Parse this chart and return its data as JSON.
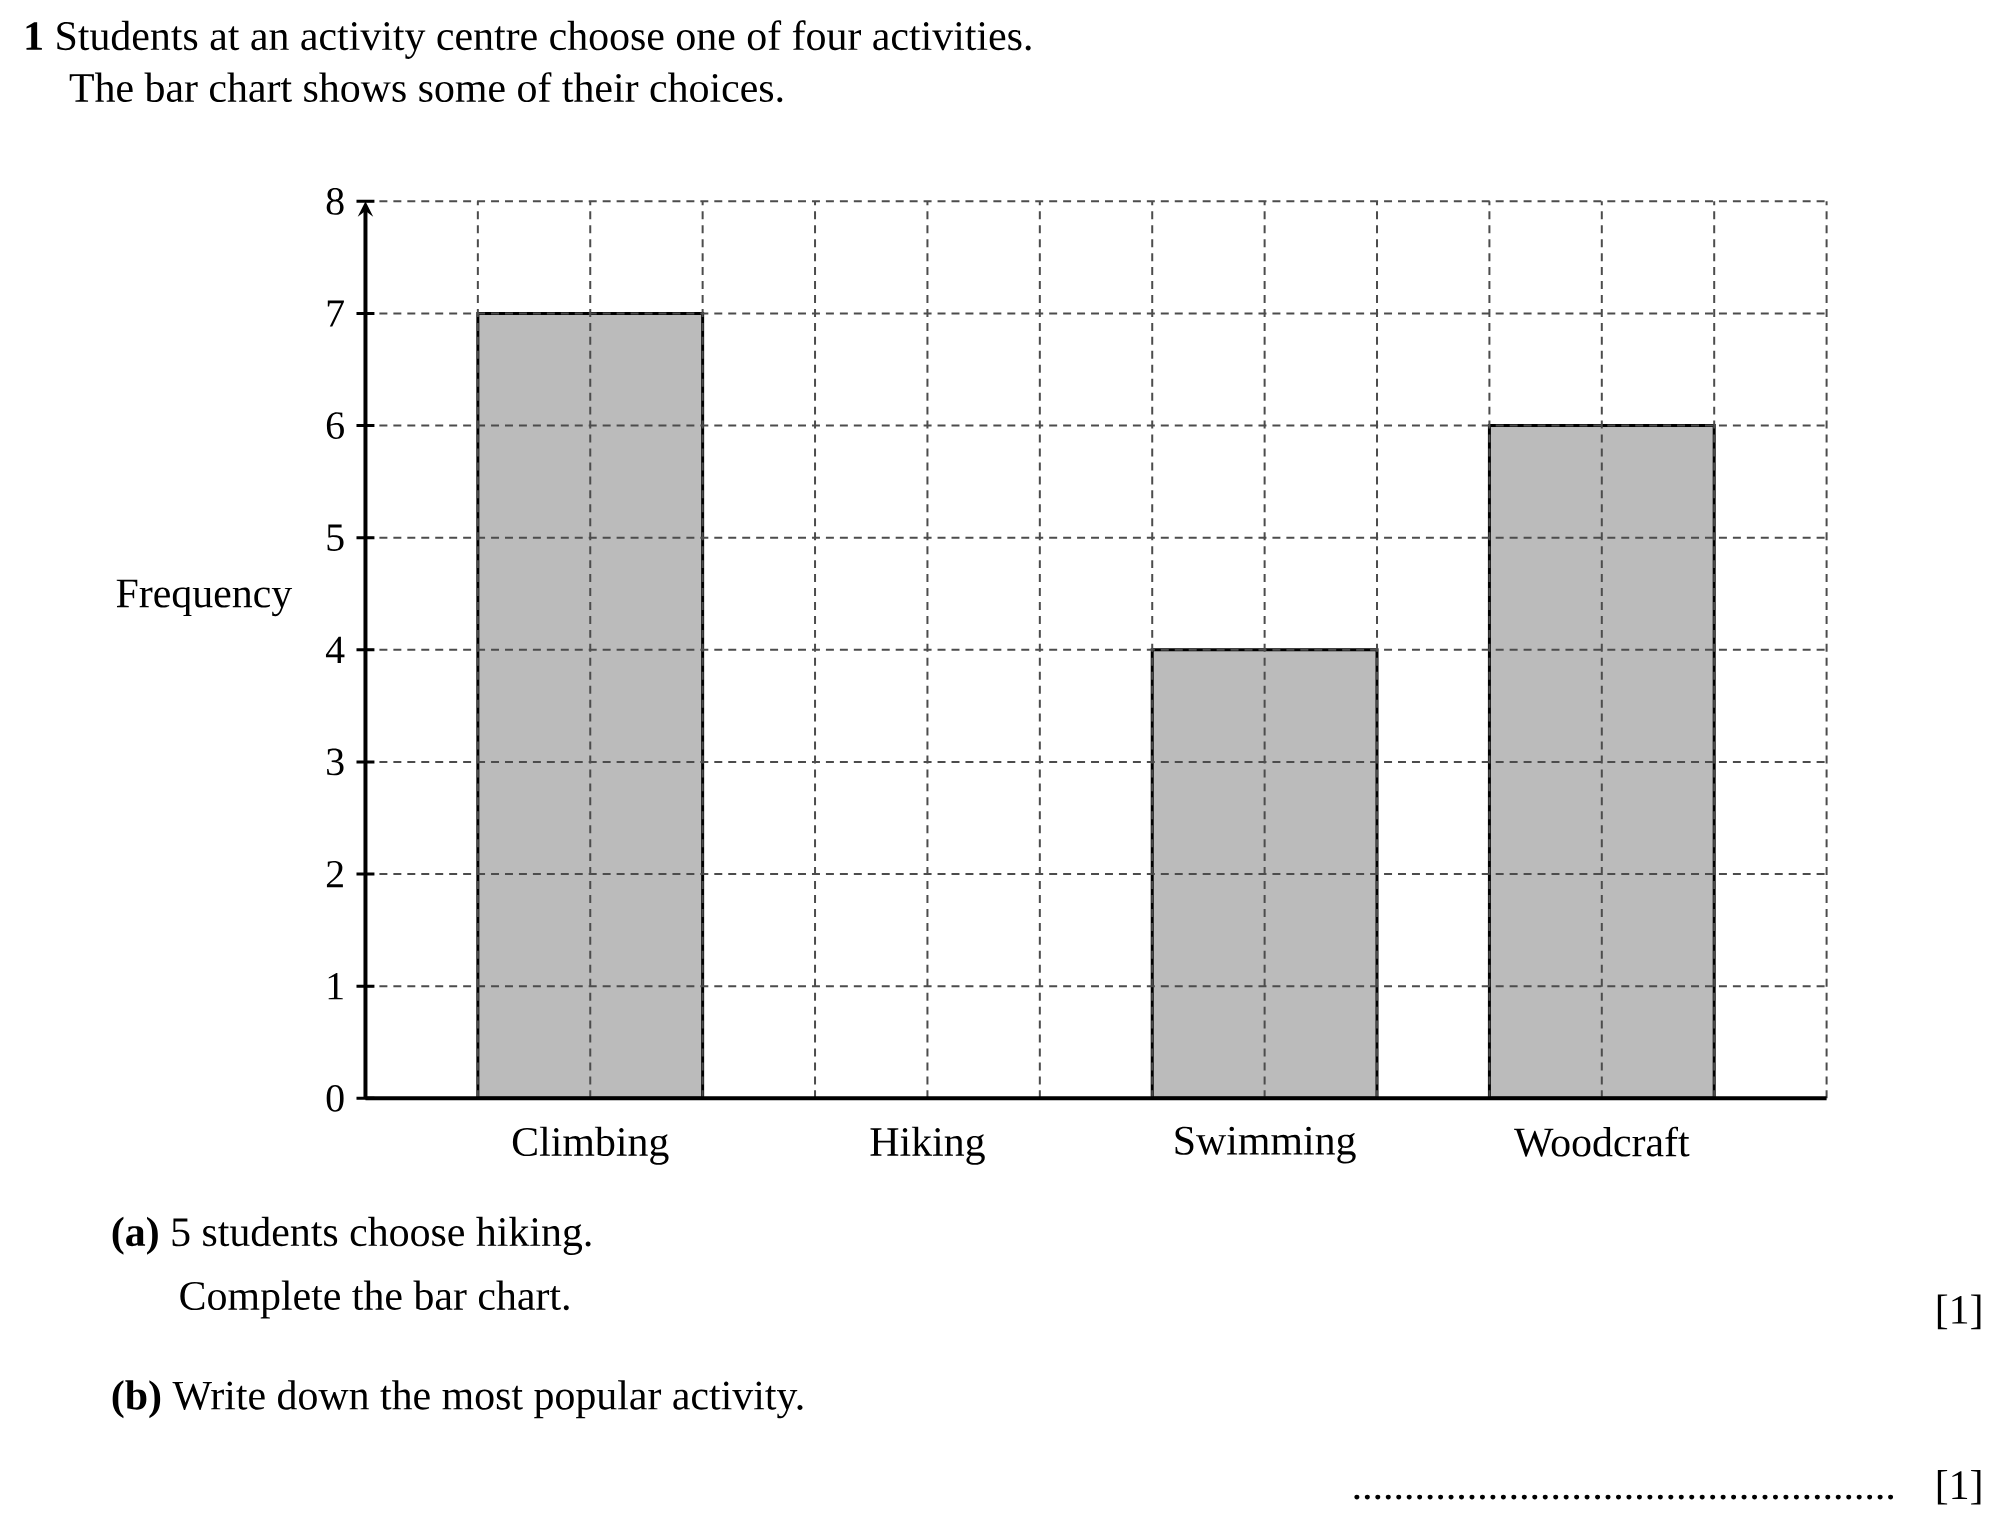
{
  "chart_data": {
    "type": "bar",
    "title": "**1** Students at an activity centre choose one of four activities.",
    "subtitle": "The bar chart shows some of their choices.",
    "ylabel": "Frequency",
    "categories": [
      "Climbing",
      "Hiking",
      "Swimming",
      "Woodcraft"
    ],
    "values": [
      7,
      null,
      4,
      6
    ],
    "color": "#bbbbbb",
    "ylim": [
      0,
      8
    ],
    "yticks": [
      0,
      1,
      2,
      3,
      4,
      5,
      6,
      7,
      8
    ],
    "grid": true,
    "annotations": [
      "**(a)** 5 students choose hiking.",
      "Complete the bar chart.",
      "[1]",
      "**(b)** Write down the most popular activity.",
      "....................................................",
      "[1]"
    ]
  }
}
